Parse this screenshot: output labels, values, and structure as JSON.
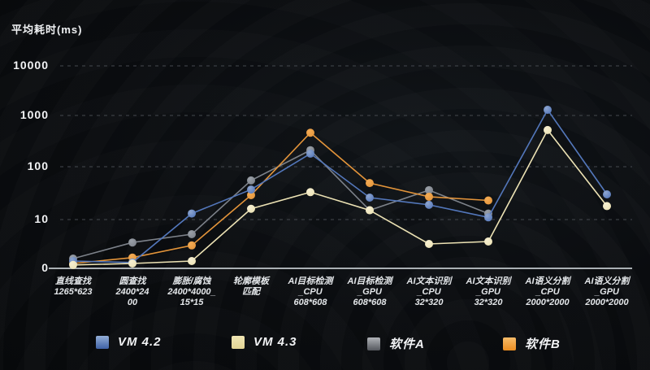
{
  "chart_data": {
    "type": "line",
    "title": "平均耗时(ms)",
    "xlabel": "",
    "ylabel": "平均耗时(ms)",
    "y_axis": {
      "scale": "log-above-10",
      "ticks": [
        0,
        10,
        100,
        1000,
        10000
      ],
      "grid": "dashed"
    },
    "legend_position": "bottom",
    "categories": [
      "直线查找\n1265*623",
      "圆查找\n2400*24\n00",
      "膨胀/腐蚀\n2400*4000_\n15*15",
      "轮廓模板\n匹配",
      "AI目标检测\n_CPU\n608*608",
      "AI目标检测\n_GPU\n608*608",
      "AI文本识别\n_CPU\n32*320",
      "AI文本识别\n_GPU\n32*320",
      "AI语义分割\n_CPU\n2000*2000",
      "AI语义分割\n_GPU\n2000*2000"
    ],
    "series": [
      {
        "name": "VM 4.2",
        "color": "#5377bb",
        "point_color": "#8fa6cf",
        "swatch_from": "#93aed6",
        "swatch_to": "#3f62a6",
        "values": [
          1.5,
          1.2,
          13,
          37,
          180,
          26,
          19,
          11,
          1300,
          30
        ]
      },
      {
        "name": "VM 4.3",
        "color": "#ece2b4",
        "point_color": "#f6efd2",
        "swatch_from": "#f0e6b4",
        "swatch_to": "#e3d494",
        "values": [
          0.7,
          1.0,
          1.5,
          16,
          33,
          15,
          5,
          5.5,
          520,
          18
        ]
      },
      {
        "name": "软件A",
        "color": "#7d828a",
        "point_color": "#9aa0a8",
        "swatch_from": "#b0b3b8",
        "swatch_to": "#54575d",
        "values": [
          2,
          5.3,
          7,
          55,
          210,
          15,
          36,
          13,
          null,
          null
        ]
      },
      {
        "name": "软件B",
        "color": "#e3943a",
        "point_color": "#f4ac55",
        "swatch_from": "#f8bc6a",
        "swatch_to": "#ec8d20",
        "values": [
          1,
          2.2,
          4.7,
          29,
          460,
          49,
          27,
          23,
          null,
          null
        ]
      }
    ]
  }
}
